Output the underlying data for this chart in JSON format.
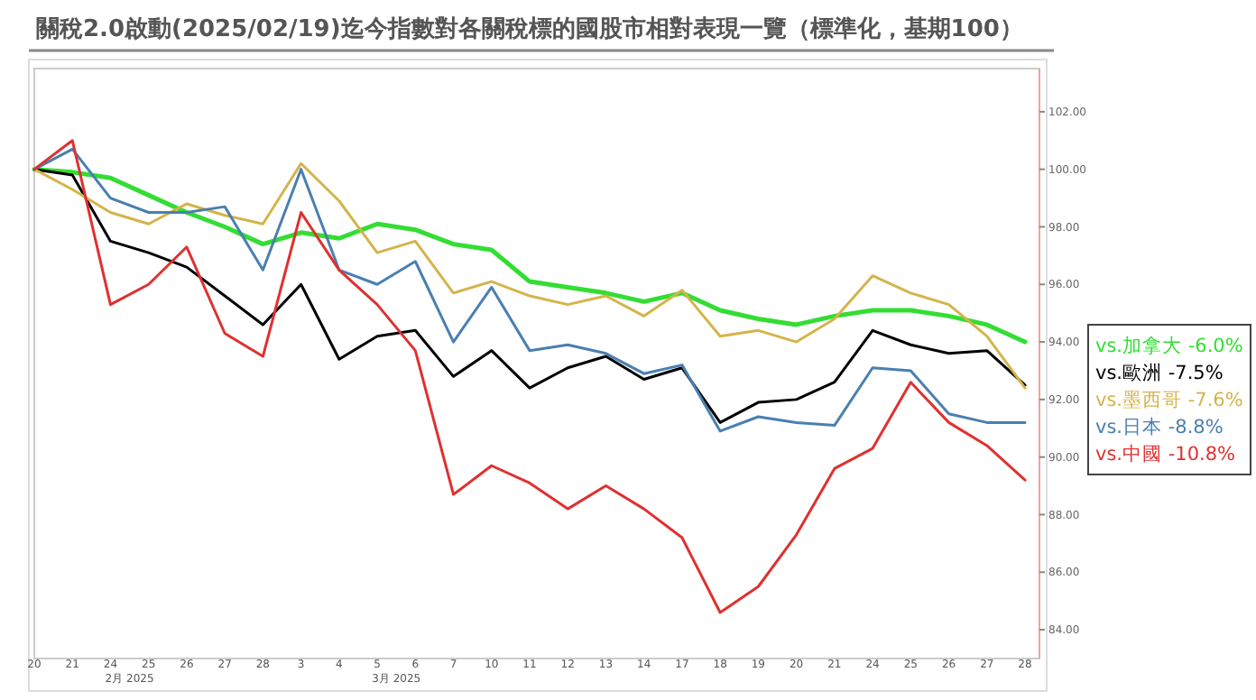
{
  "chart_data": {
    "type": "line",
    "title": "關稅2.0啟動(2025/02/19)迄今指數對各關稅標的國股市相對表現一覽（標準化，基期100）",
    "categories": [
      "20",
      "21",
      "24",
      "25",
      "26",
      "27",
      "28",
      "3",
      "4",
      "5",
      "6",
      "7",
      "10",
      "11",
      "12",
      "13",
      "14",
      "17",
      "18",
      "19",
      "20",
      "21",
      "24",
      "25",
      "26",
      "27",
      "28"
    ],
    "ylim": [
      83,
      103.5
    ],
    "yticks": [
      {
        "value": 84,
        "label": "84.00"
      },
      {
        "value": 86,
        "label": "86.00"
      },
      {
        "value": 88,
        "label": "88.00"
      },
      {
        "value": 90,
        "label": "90.00"
      },
      {
        "value": 92,
        "label": "92.00"
      },
      {
        "value": 94,
        "label": "94.00"
      },
      {
        "value": 96,
        "label": "96.00"
      },
      {
        "value": 98,
        "label": "98.00"
      },
      {
        "value": 100,
        "label": "100.00"
      },
      {
        "value": 102,
        "label": "102.00"
      }
    ],
    "grid": false,
    "legend": "right",
    "line_style": "solid",
    "marker": "none",
    "annotations": [
      "2月 2025",
      "3月 2025"
    ],
    "series": [
      {
        "name": "vs.加拿大 -6.0%",
        "color": "#33dd33",
        "values": [
          100,
          99.9,
          99.7,
          99.1,
          98.5,
          98.0,
          97.4,
          97.8,
          97.6,
          98.1,
          97.9,
          97.4,
          97.2,
          96.1,
          95.9,
          95.7,
          95.4,
          95.7,
          95.1,
          94.8,
          94.6,
          94.9,
          95.1,
          95.1,
          94.9,
          94.6,
          94.0
        ]
      },
      {
        "name": "vs.歐洲 -7.5%",
        "color": "#000000",
        "values": [
          100,
          99.8,
          97.5,
          97.1,
          96.6,
          95.6,
          94.6,
          96.0,
          93.4,
          94.2,
          94.4,
          92.8,
          93.7,
          92.4,
          93.1,
          93.5,
          92.7,
          93.1,
          91.2,
          91.9,
          92.0,
          92.6,
          94.4,
          93.9,
          93.6,
          93.7,
          92.5
        ]
      },
      {
        "name": "vs.墨西哥 -7.6%",
        "color": "#d4b44a",
        "values": [
          100,
          99.3,
          98.5,
          98.1,
          98.8,
          98.4,
          98.1,
          100.2,
          98.9,
          97.1,
          97.5,
          95.7,
          96.1,
          95.6,
          95.3,
          95.6,
          94.9,
          95.8,
          94.2,
          94.4,
          94.0,
          94.8,
          96.3,
          95.7,
          95.3,
          94.2,
          92.4
        ]
      },
      {
        "name": "vs.日本 -8.8%",
        "color": "#4a7fb0",
        "values": [
          100,
          100.7,
          99.0,
          98.5,
          98.5,
          98.7,
          96.5,
          100.0,
          96.5,
          96.0,
          96.8,
          94.0,
          95.9,
          93.7,
          93.9,
          93.6,
          92.9,
          93.2,
          90.9,
          91.4,
          91.2,
          91.1,
          93.1,
          93.0,
          91.5,
          91.2,
          91.2
        ]
      },
      {
        "name": "vs.中國 -10.8%",
        "color": "#e03030",
        "values": [
          100,
          101.0,
          95.3,
          96.0,
          97.3,
          94.3,
          93.5,
          98.5,
          96.5,
          95.3,
          93.7,
          88.7,
          89.7,
          89.1,
          88.2,
          89.0,
          88.2,
          87.2,
          84.6,
          85.5,
          87.3,
          89.6,
          90.3,
          92.6,
          91.2,
          90.4,
          89.2
        ]
      }
    ]
  }
}
